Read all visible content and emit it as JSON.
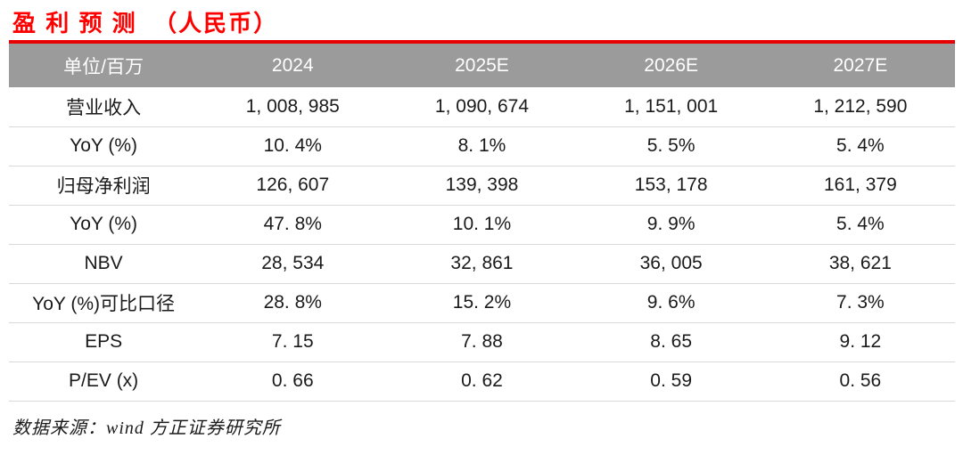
{
  "title": "盈 利 预 测  （人民币）",
  "colors": {
    "accent_red": "#e60000",
    "title_red": "#fe0000",
    "header_bg": "#9b9b9b",
    "header_text": "#ffffff",
    "row_divider": "#d9d9d9",
    "body_text": "#1a1a1a"
  },
  "table": {
    "header": [
      "单位/百万",
      "2024",
      "2025E",
      "2026E",
      "2027E"
    ],
    "rows": [
      {
        "label": "营业收入",
        "values": [
          "1, 008, 985",
          "1, 090, 674",
          "1, 151, 001",
          "1, 212, 590"
        ]
      },
      {
        "label": "YoY (%)",
        "values": [
          "10. 4%",
          "8. 1%",
          "5. 5%",
          "5. 4%"
        ]
      },
      {
        "label": "归母净利润",
        "values": [
          "126, 607",
          "139, 398",
          "153, 178",
          "161, 379"
        ]
      },
      {
        "label": "YoY (%)",
        "values": [
          "47. 8%",
          "10. 1%",
          "9. 9%",
          "5. 4%"
        ]
      },
      {
        "label": "NBV",
        "values": [
          "28, 534",
          "32, 861",
          "36, 005",
          "38, 621"
        ]
      },
      {
        "label": "YoY (%)可比口径",
        "values": [
          "28. 8%",
          "15. 2%",
          "9. 6%",
          "7. 3%"
        ]
      },
      {
        "label": "EPS",
        "values": [
          "7. 15",
          "7. 88",
          "8. 65",
          "9. 12"
        ]
      },
      {
        "label": "P/EV (x)",
        "values": [
          "0. 66",
          "0. 62",
          "0. 59",
          "0. 56"
        ]
      }
    ]
  },
  "footer": {
    "source_note": "数据来源：wind 方正证券研究所"
  }
}
